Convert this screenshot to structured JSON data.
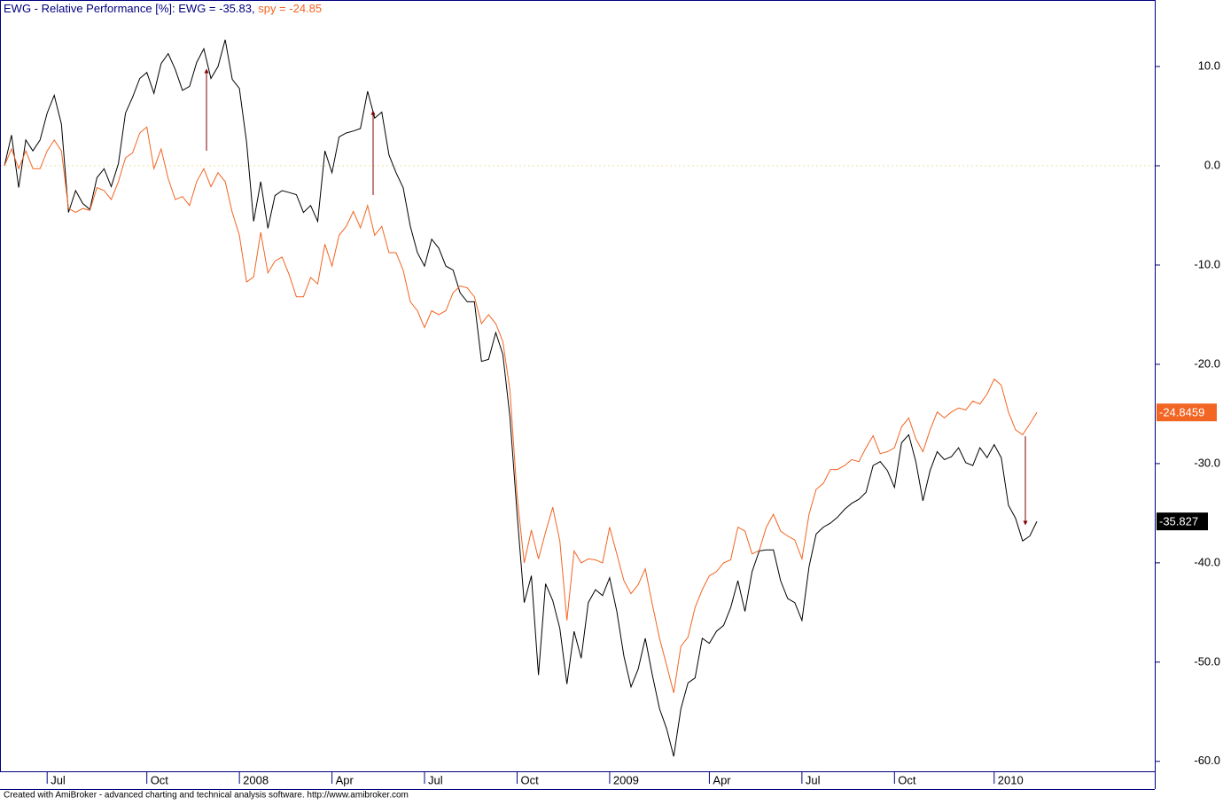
{
  "chart_data": {
    "type": "line",
    "title": "EWG - Relative Performance [%]:",
    "footer": "Created with AmiBroker - advanced charting and technical analysis software. http://www.amibroker.com",
    "categories": [
      null,
      null,
      null,
      null,
      null,
      null,
      "Jul",
      null,
      null,
      null,
      null,
      null,
      null,
      null,
      null,
      null,
      null,
      null,
      null,
      null,
      "Oct",
      null,
      null,
      null,
      null,
      null,
      null,
      null,
      null,
      null,
      null,
      null,
      null,
      "2008",
      null,
      null,
      null,
      null,
      null,
      null,
      null,
      null,
      null,
      null,
      null,
      null,
      "Apr",
      null,
      null,
      null,
      null,
      null,
      null,
      null,
      null,
      null,
      null,
      null,
      null,
      "Jul",
      null,
      null,
      null,
      null,
      null,
      null,
      null,
      null,
      null,
      null,
      null,
      null,
      "Oct",
      null,
      null,
      null,
      null,
      null,
      null,
      null,
      null,
      null,
      null,
      null,
      null,
      "2009",
      null,
      null,
      null,
      null,
      null,
      null,
      null,
      null,
      null,
      null,
      null,
      null,
      null,
      "Apr",
      null,
      null,
      null,
      null,
      null,
      null,
      null,
      null,
      null,
      null,
      null,
      null,
      "Jul",
      null,
      null,
      null,
      null,
      null,
      null,
      null,
      null,
      null,
      null,
      null,
      null,
      "Oct",
      null,
      null,
      null,
      null,
      null,
      null,
      null,
      null,
      null,
      null,
      null,
      null,
      null,
      "2010",
      null,
      null,
      null,
      null,
      null,
      null
    ],
    "series": [
      {
        "name": "EWG = -35.83",
        "color": "#000000",
        "values": [
          0,
          3.1,
          -2.2,
          2.6,
          1.5,
          2.6,
          5.3,
          7.1,
          4.2,
          -4.7,
          -2.5,
          -3.8,
          -4.4,
          -1.2,
          -0.3,
          -2.1,
          0.2,
          5.3,
          6.9,
          8.8,
          9.4,
          7.3,
          10.3,
          11.3,
          9.7,
          7.6,
          8.0,
          10.4,
          11.8,
          8.8,
          10.0,
          12.7,
          8.7,
          7.8,
          2.4,
          -5.6,
          -1.6,
          -6.3,
          -3.0,
          -2.5,
          -2.7,
          -2.9,
          -4.7,
          -4.0,
          -5.6,
          1.5,
          -0.7,
          2.9,
          3.3,
          3.5,
          3.75,
          7.5,
          4.8,
          5.4,
          1.1,
          -0.7,
          -2.2,
          -6.1,
          -8.75,
          -10.1,
          -7.4,
          -8.3,
          -10.1,
          -10.5,
          -12.8,
          -13.7,
          -13.7,
          -19.7,
          -19.5,
          -16.8,
          -19.0,
          -25.3,
          -35.1,
          -44.0,
          -41.3,
          -51.3,
          -42.1,
          -43.8,
          -46.6,
          -52.2,
          -46.9,
          -49.6,
          -44.0,
          -42.7,
          -43.3,
          -41.5,
          -44.9,
          -49.4,
          -52.5,
          -50.7,
          -47.6,
          -51.3,
          -54.7,
          -56.7,
          -59.5,
          -54.7,
          -52.1,
          -51.6,
          -47.6,
          -48.1,
          -46.9,
          -46.3,
          -44.5,
          -41.8,
          -44.9,
          -40.9,
          -38.8,
          -38.7,
          -38.7,
          -41.8,
          -43.6,
          -44.0,
          -45.8,
          -40.4,
          -37.1,
          -36.4,
          -36.0,
          -35.4,
          -34.6,
          -34.0,
          -33.6,
          -32.9,
          -30.2,
          -29.8,
          -30.7,
          -32.4,
          -27.9,
          -27.1,
          -29.8,
          -33.75,
          -30.7,
          -28.8,
          -29.6,
          -29.3,
          -28.4,
          -29.9,
          -30.2,
          -28.4,
          -29.4,
          -28.1,
          -29.4,
          -34.2,
          -35.5,
          -37.8,
          -37.3,
          -35.827
        ]
      },
      {
        "name": "spy = -24.85",
        "color": "#f26522",
        "values": [
          0,
          1.7,
          -0.3,
          1.5,
          -0.3,
          -0.3,
          1.5,
          2.6,
          1.5,
          -4.3,
          -4.7,
          -4.3,
          -4.5,
          -2.2,
          -2.5,
          -3.4,
          -1.6,
          0.8,
          1.3,
          3.3,
          3.9,
          -0.3,
          1.7,
          -1.3,
          -3.4,
          -3.1,
          -4.0,
          -1.6,
          -0.3,
          -2.1,
          -0.7,
          -1.6,
          -4.7,
          -7.0,
          -11.7,
          -11.2,
          -6.7,
          -10.8,
          -9.6,
          -9.2,
          -11.0,
          -13.2,
          -13.2,
          -11.25,
          -11.9,
          -7.9,
          -10.1,
          -7.0,
          -6.1,
          -4.6,
          -6.25,
          -4.0,
          -7.0,
          -6.1,
          -8.75,
          -8.75,
          -10.5,
          -13.7,
          -14.6,
          -16.3,
          -14.6,
          -15.0,
          -14.6,
          -12.8,
          -12.1,
          -12.3,
          -13.2,
          -15.9,
          -15.0,
          -15.9,
          -17.7,
          -22.6,
          -33.3,
          -40.0,
          -36.7,
          -39.6,
          -36.9,
          -34.4,
          -37.8,
          -45.8,
          -38.8,
          -40.0,
          -39.6,
          -39.7,
          -40.0,
          -36.4,
          -39.1,
          -41.8,
          -43.1,
          -42.2,
          -40.6,
          -44.2,
          -47.6,
          -50.3,
          -53.1,
          -48.4,
          -47.5,
          -44.5,
          -42.7,
          -41.3,
          -40.9,
          -40.0,
          -39.7,
          -36.4,
          -36.8,
          -39.1,
          -38.75,
          -36.4,
          -35.1,
          -36.8,
          -37.3,
          -37.7,
          -39.6,
          -35.1,
          -32.6,
          -32.0,
          -30.6,
          -30.6,
          -30.2,
          -29.6,
          -29.8,
          -28.4,
          -27.2,
          -29.0,
          -28.8,
          -28.4,
          -26.3,
          -25.4,
          -27.5,
          -28.8,
          -26.6,
          -24.8,
          -25.4,
          -24.8,
          -24.4,
          -24.6,
          -23.7,
          -24.0,
          -23.0,
          -21.5,
          -22.1,
          -24.8,
          -26.6,
          -27.1,
          -26.0,
          -24.8459
        ]
      }
    ],
    "ylim": [
      -61,
      16.7
    ],
    "yticks": [
      {
        "value": 10,
        "label": "10.0"
      },
      {
        "value": 0,
        "label": "0.0"
      },
      {
        "value": -10,
        "label": "-10.0"
      },
      {
        "value": -20,
        "label": "-20.0"
      },
      {
        "value": -30,
        "label": "-30.0"
      },
      {
        "value": -40,
        "label": "-40.0"
      },
      {
        "value": -50,
        "label": "-50.0"
      },
      {
        "value": -60,
        "label": "-60.0"
      }
    ],
    "zero_line_color": "#e8e0a0"
  }
}
